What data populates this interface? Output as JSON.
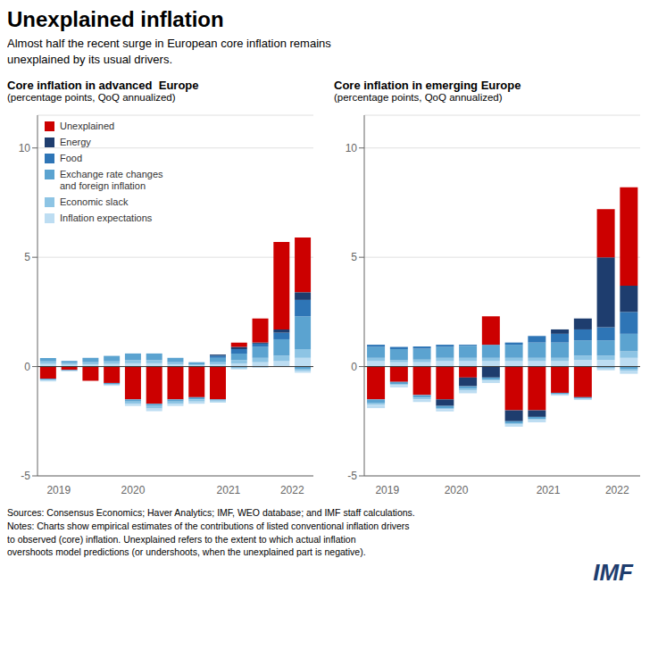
{
  "title": "Unexplained inflation",
  "subtitle": "Almost half the recent surge in European core inflation remains\nunexplained by its usual drivers.",
  "annotations": [
    {
      "text": "Sources: Consensus Economics; Haver Analytics; IMF, WEO database; and IMF staff calculations.\nNotes: Charts show empirical estimates of the contributions of listed conventional inflation drivers\nto observed (core) inflation. Unexplained refers to the extent to which actual inflation\novershoots model predictions (or undershoots, when the unexplained part is negative)."
    },
    {
      "text": "IMF",
      "color": "#1e3d6e"
    }
  ],
  "chart_data": [
    {
      "type": "bar",
      "stacked": true,
      "title": "Core inflation in advanced  Europe",
      "subtitle": "(percentage points, QoQ annualized)",
      "categories": [
        "2019",
        null,
        "2020",
        null,
        null,
        null,
        null,
        "2021",
        null,
        null,
        null,
        "2022",
        null
      ],
      "series": [
        {
          "name": "Unexplained",
          "color": "#cc0000",
          "values": [
            -0.55,
            -0.15,
            -0.65,
            -0.75,
            -1.5,
            -1.7,
            -1.5,
            -1.4,
            -1.5,
            0.2,
            1.1,
            4.0,
            2.5
          ]
        },
        {
          "name": "Energy",
          "color": "#1e3d6e",
          "values": [
            0.0,
            0.0,
            0.0,
            0.0,
            0.0,
            0.0,
            0.0,
            0.0,
            0.05,
            0.1,
            0.05,
            0.15,
            0.35
          ]
        },
        {
          "name": "Food",
          "color": "#2e75b6",
          "values": [
            0.0,
            0.0,
            0.0,
            0.0,
            0.0,
            0.0,
            0.0,
            0.0,
            0.1,
            0.2,
            0.15,
            0.3,
            0.75
          ]
        },
        {
          "name": "Exchange rate changes\nand foreign inflation",
          "color": "#5ba3d0",
          "values": [
            0.15,
            0.1,
            0.2,
            0.25,
            0.3,
            0.3,
            0.2,
            0.1,
            0.2,
            0.3,
            0.5,
            0.75,
            1.5
          ]
        },
        {
          "name": "Economic slack",
          "color": "#8dc4e4",
          "values": [
            0.12,
            0.08,
            0.1,
            0.12,
            0.15,
            0.15,
            0.1,
            0.05,
            0.1,
            0.15,
            0.2,
            0.25,
            0.4
          ]
        },
        {
          "name": "Inflation expectations",
          "color": "#bdddf2",
          "values": [
            0.12,
            0.08,
            0.1,
            0.12,
            0.15,
            0.15,
            0.1,
            0.05,
            0.1,
            0.15,
            0.2,
            0.25,
            0.4
          ]
        },
        {
          "name": "Energy",
          "color": "#1e3d6e",
          "values": [
            0.0,
            0.0,
            0.0,
            0.0,
            0.0,
            0.0,
            0.0,
            0.0,
            0.0,
            0.0,
            0.0,
            0.0,
            0.0
          ]
        },
        {
          "name": "Exchange rate changes\nand foreign inflation",
          "color": "#5ba3d0",
          "values": [
            -0.05,
            -0.03,
            0.0,
            -0.05,
            -0.1,
            -0.1,
            -0.1,
            -0.1,
            -0.05,
            -0.05,
            0.0,
            0.0,
            -0.1
          ]
        },
        {
          "name": "Economic slack",
          "color": "#8dc4e4",
          "values": [
            -0.04,
            -0.02,
            0.0,
            -0.04,
            -0.1,
            -0.12,
            -0.1,
            -0.1,
            -0.05,
            -0.04,
            0.0,
            0.0,
            -0.08
          ]
        },
        {
          "name": "Inflation expectations",
          "color": "#bdddf2",
          "values": [
            -0.04,
            -0.02,
            0.0,
            -0.04,
            -0.1,
            -0.12,
            -0.1,
            -0.1,
            -0.05,
            -0.04,
            -0.05,
            0.0,
            -0.1
          ]
        }
      ],
      "ylim": [
        -5,
        11.5
      ],
      "yticks": [
        -5,
        0,
        5,
        10
      ],
      "grid": true,
      "legend": "upper left"
    },
    {
      "type": "bar",
      "stacked": true,
      "title": "Core inflation in emerging Europe",
      "subtitle": "(percentage points, QoQ annualized)",
      "categories": [
        "2019",
        null,
        "2020",
        null,
        null,
        null,
        "2021",
        null,
        null,
        null,
        "2022",
        null
      ],
      "series": [
        {
          "name": "Unexplained",
          "color": "#cc0000",
          "values": [
            -1.5,
            -0.7,
            -1.3,
            -1.5,
            -0.5,
            1.3,
            -2.0,
            -2.0,
            -1.2,
            -1.4,
            2.2,
            4.5
          ]
        },
        {
          "name": "Energy",
          "color": "#1e3d6e",
          "values": [
            0.0,
            0.0,
            0.0,
            0.0,
            0.0,
            0.0,
            0.0,
            0.0,
            0.2,
            0.5,
            3.2,
            1.2
          ]
        },
        {
          "name": "Food",
          "color": "#2e75b6",
          "values": [
            0.1,
            0.1,
            0.1,
            0.1,
            0.05,
            0.0,
            0.1,
            0.3,
            0.4,
            0.5,
            0.6,
            1.0
          ]
        },
        {
          "name": "Exchange rate changes\nand foreign inflation",
          "color": "#5ba3d0",
          "values": [
            0.5,
            0.5,
            0.5,
            0.5,
            0.55,
            0.6,
            0.6,
            0.7,
            0.7,
            0.7,
            0.7,
            0.8
          ]
        },
        {
          "name": "Economic slack",
          "color": "#8dc4e4",
          "values": [
            0.15,
            0.1,
            0.12,
            0.15,
            0.15,
            0.15,
            0.15,
            0.15,
            0.15,
            0.2,
            0.2,
            0.3
          ]
        },
        {
          "name": "Inflation expectations",
          "color": "#bdddf2",
          "values": [
            0.25,
            0.2,
            0.2,
            0.25,
            0.25,
            0.25,
            0.25,
            0.25,
            0.25,
            0.3,
            0.3,
            0.4
          ]
        },
        {
          "name": "Energy",
          "color": "#1e3d6e",
          "values": [
            0.0,
            0.0,
            0.0,
            -0.3,
            -0.4,
            -0.5,
            -0.5,
            -0.3,
            0.0,
            0.0,
            0.0,
            0.0
          ]
        },
        {
          "name": "Exchange rate changes\nand foreign inflation",
          "color": "#5ba3d0",
          "values": [
            -0.15,
            -0.1,
            -0.12,
            -0.1,
            -0.12,
            -0.1,
            -0.1,
            -0.1,
            -0.05,
            -0.05,
            -0.05,
            -0.1
          ]
        },
        {
          "name": "Economic slack",
          "color": "#8dc4e4",
          "values": [
            -0.1,
            -0.05,
            -0.08,
            -0.05,
            -0.08,
            -0.05,
            -0.05,
            -0.05,
            -0.03,
            -0.03,
            -0.04,
            -0.08
          ]
        },
        {
          "name": "Inflation expectations",
          "color": "#bdddf2",
          "values": [
            -0.15,
            -0.1,
            -0.12,
            -0.1,
            -0.12,
            -0.1,
            -0.1,
            -0.1,
            -0.05,
            -0.05,
            -0.08,
            -0.15
          ]
        }
      ],
      "ylim": [
        -5,
        11.5
      ],
      "yticks": [
        -5,
        0,
        5,
        10
      ],
      "grid": true
    }
  ]
}
